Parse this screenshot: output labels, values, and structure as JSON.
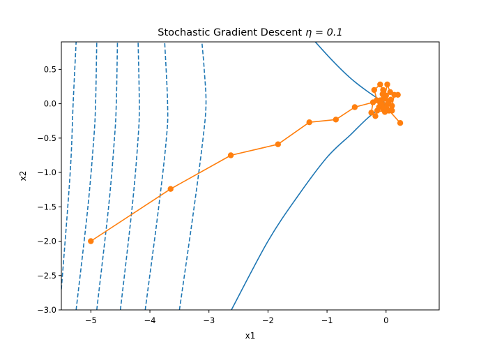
{
  "chart_data": {
    "type": "line",
    "title": "Stochastic Gradient Descent",
    "title_math": "η = 0.1",
    "xlabel": "x1",
    "ylabel": "x2",
    "xlim": [
      -5.5,
      0.9
    ],
    "ylim": [
      -3.0,
      0.9
    ],
    "x_ticks": [
      -5,
      -4,
      -3,
      -2,
      -1,
      0
    ],
    "x_tick_labels": [
      "−5",
      "−4",
      "−3",
      "−2",
      "−1",
      "0"
    ],
    "y_ticks": [
      0.5,
      0.0,
      -0.5,
      -1.0,
      -1.5,
      -2.0,
      -2.5,
      -3.0
    ],
    "y_tick_labels": [
      "0.5",
      "0.0",
      "−0.5",
      "−1.0",
      "−1.5",
      "−2.0",
      "−2.5",
      "−3.0"
    ],
    "grid": false,
    "colors": {
      "contour": "#1f77b4",
      "trajectory": "#ff7f0e"
    },
    "contours": [
      {
        "style": "dashed",
        "points": [
          [
            -5.5,
            -2.7
          ],
          [
            -5.35,
            -1.0
          ],
          [
            -5.3,
            0.0
          ],
          [
            -5.25,
            0.9
          ]
        ]
      },
      {
        "style": "dashed",
        "points": [
          [
            -5.25,
            -3.0
          ],
          [
            -5.05,
            -1.5
          ],
          [
            -4.95,
            -0.5
          ],
          [
            -4.92,
            0.0
          ],
          [
            -4.9,
            0.9
          ]
        ]
      },
      {
        "style": "dashed",
        "points": [
          [
            -4.9,
            -3.0
          ],
          [
            -4.7,
            -1.5
          ],
          [
            -4.6,
            -0.5
          ],
          [
            -4.57,
            0.0
          ],
          [
            -4.55,
            0.9
          ]
        ]
      },
      {
        "style": "dashed",
        "points": [
          [
            -4.5,
            -3.0
          ],
          [
            -4.3,
            -1.5
          ],
          [
            -4.2,
            -0.5
          ],
          [
            -4.18,
            0.0
          ],
          [
            -4.2,
            0.9
          ]
        ]
      },
      {
        "style": "dashed",
        "points": [
          [
            -4.08,
            -3.0
          ],
          [
            -3.85,
            -1.5
          ],
          [
            -3.72,
            -0.5
          ],
          [
            -3.7,
            0.0
          ],
          [
            -3.75,
            0.9
          ]
        ]
      },
      {
        "style": "dashed",
        "points": [
          [
            -3.5,
            -3.0
          ],
          [
            -3.25,
            -1.5
          ],
          [
            -3.1,
            -0.5
          ],
          [
            -3.05,
            0.0
          ],
          [
            -3.08,
            0.5
          ],
          [
            -3.12,
            0.9
          ]
        ]
      },
      {
        "style": "solid",
        "points": [
          [
            -2.62,
            -3.0
          ],
          [
            -2.0,
            -2.0
          ],
          [
            -1.5,
            -1.35
          ],
          [
            -1.0,
            -0.78
          ],
          [
            -0.6,
            -0.45
          ],
          [
            -0.3,
            -0.2
          ],
          [
            0.0,
            0.0
          ]
        ]
      },
      {
        "style": "solid",
        "points": [
          [
            0.0,
            0.0
          ],
          [
            -0.3,
            0.17
          ],
          [
            -0.6,
            0.37
          ],
          [
            -0.9,
            0.62
          ],
          [
            -1.2,
            0.9
          ]
        ]
      }
    ],
    "series": [
      {
        "points": [
          [
            -5.0,
            -2.0
          ],
          [
            -3.65,
            -1.24
          ],
          [
            -2.63,
            -0.75
          ],
          [
            -1.83,
            -0.59
          ],
          [
            -1.3,
            -0.27
          ],
          [
            -0.85,
            -0.23
          ],
          [
            -0.53,
            -0.05
          ],
          [
            -0.22,
            0.02
          ],
          [
            -0.25,
            -0.13
          ],
          [
            -0.18,
            -0.18
          ],
          [
            -0.12,
            -0.05
          ],
          [
            -0.2,
            0.2
          ],
          [
            -0.1,
            0.28
          ],
          [
            -0.05,
            0.2
          ],
          [
            0.0,
            0.12
          ],
          [
            0.05,
            0.04
          ],
          [
            0.1,
            -0.03
          ],
          [
            0.14,
            0.13
          ],
          [
            0.2,
            0.13
          ],
          [
            0.07,
            0.17
          ],
          [
            0.02,
            0.28
          ],
          [
            -0.03,
            0.07
          ],
          [
            -0.08,
            -0.02
          ],
          [
            -0.15,
            -0.1
          ],
          [
            -0.02,
            -0.12
          ],
          [
            0.05,
            -0.1
          ],
          [
            0.1,
            -0.1
          ],
          [
            -0.1,
            0.05
          ],
          [
            -0.06,
            0.14
          ],
          [
            0.03,
            0.0
          ],
          [
            -0.16,
            0.05
          ],
          [
            -0.05,
            -0.08
          ],
          [
            0.08,
            0.06
          ],
          [
            0.0,
            -0.05
          ],
          [
            0.24,
            -0.28
          ]
        ]
      }
    ]
  }
}
